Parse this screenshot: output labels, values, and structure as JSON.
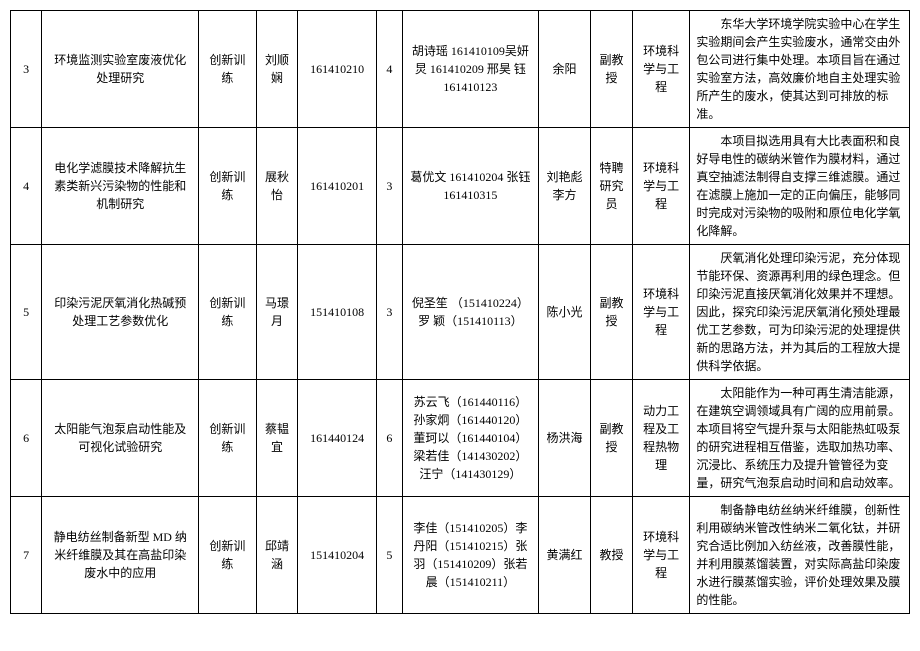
{
  "table": {
    "columns": {
      "widths": [
        30,
        150,
        55,
        40,
        75,
        25,
        130,
        50,
        40,
        55,
        210
      ]
    },
    "rows": [
      {
        "idx": "3",
        "title": "环境监测实验室废液优化处理研究",
        "type": "创新训练",
        "leader": "刘顺娴",
        "id": "161410210",
        "num": "4",
        "members": "胡诗瑶 161410109吴妍炅 161410209 邢昊 钰 161410123",
        "advisor": "余阳",
        "role": "副教授",
        "field": "环境科学与工程",
        "desc": "东华大学环境学院实验中心在学生实验期间会产生实验废水，通常交由外包公司进行集中处理。本项目旨在通过实验室方法，高效廉价地自主处理实验所产生的废水，使其达到可排放的标准。"
      },
      {
        "idx": "4",
        "title": "电化学滤膜技术降解抗生素类新兴污染物的性能和机制研究",
        "type": "创新训练",
        "leader": "展秋怡",
        "id": "161410201",
        "num": "3",
        "members": "葛优文 161410204 张钰 161410315",
        "advisor": "刘艳彪 李方",
        "role": "特聘研究员",
        "field": "环境科学与工程",
        "desc": "本项目拟选用具有大比表面积和良好导电性的碳纳米管作为膜材料，通过真空抽滤法制得自支撑三维滤膜。通过在滤膜上施加一定的正向偏压，能够同时完成对污染物的吸附和原位电化学氧化降解。"
      },
      {
        "idx": "5",
        "title": "印染污泥厌氧消化热碱预处理工艺参数优化",
        "type": "创新训练",
        "leader": "马璟月",
        "id": "151410108",
        "num": "3",
        "members": "倪圣笙 （151410224）罗 颖（151410113）",
        "advisor": "陈小光",
        "role": "副教授",
        "field": "环境科学与工程",
        "desc": "厌氧消化处理印染污泥，充分体现节能环保、资源再利用的绿色理念。但印染污泥直接厌氧消化效果并不理想。因此，探究印染污泥厌氧消化预处理最优工艺参数，可为印染污泥的处理提供新的思路方法，并为其后的工程放大提供科学依据。"
      },
      {
        "idx": "6",
        "title": "太阳能气泡泵启动性能及可视化试验研究",
        "type": "创新训练",
        "leader": "蔡韫宜",
        "id": "161440124",
        "num": "6",
        "members": "苏云飞（161440116）孙家炯（161440120）董珂以（161440104）梁若佳（141430202）汪宁（141430129）",
        "advisor": "杨洪海",
        "role": "副教授",
        "field": "动力工程及工程热物理",
        "desc": "太阳能作为一种可再生清洁能源，在建筑空调领域具有广阔的应用前景。本项目将空气提升泵与太阳能热虹吸泵的研究进程相互借鉴，选取加热功率、沉浸比、系统压力及提升管管径为变量，研究气泡泵启动时间和启动效率。"
      },
      {
        "idx": "7",
        "title": "静电纺丝制备新型 MD 纳米纤维膜及其在高盐印染废水中的应用",
        "type": "创新训练",
        "leader": "邱靖涵",
        "id": "151410204",
        "num": "5",
        "members": "李佳（151410205）李丹阳（151410215）张羽（151410209）张若晨（151410211）",
        "advisor": "黄满红",
        "role": "教授",
        "field": "环境科学与工程",
        "desc": "制备静电纺丝纳米纤维膜，创新性利用碳纳米管改性纳米二氧化钛，并研究合适比例加入纺丝液，改善膜性能，并利用膜蒸馏装置，对实际高盐印染废水进行膜蒸馏实验，评价处理效果及膜的性能。"
      }
    ]
  }
}
